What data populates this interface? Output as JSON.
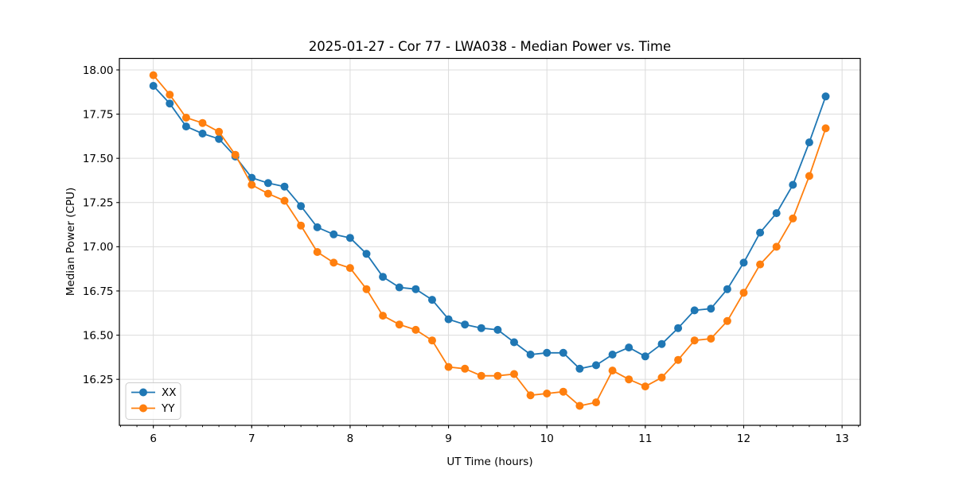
{
  "chart_data": {
    "type": "line",
    "title": "2025-01-27 - Cor 77 - LWA038 - Median Power vs. Time",
    "xlabel": "UT Time (hours)",
    "ylabel": "Median Power (CPU)",
    "xlim": [
      5.655,
      13.185
    ],
    "ylim": [
      15.99,
      18.065
    ],
    "grid": true,
    "legend_position": "lower left",
    "x_minor_step": 0.1666667,
    "x_ticks": [
      {
        "v": 6,
        "label": "6"
      },
      {
        "v": 7,
        "label": "7"
      },
      {
        "v": 8,
        "label": "8"
      },
      {
        "v": 9,
        "label": "9"
      },
      {
        "v": 10,
        "label": "10"
      },
      {
        "v": 11,
        "label": "11"
      },
      {
        "v": 12,
        "label": "12"
      },
      {
        "v": 13,
        "label": "13"
      }
    ],
    "y_ticks": [
      {
        "v": 16.25,
        "label": "16.25"
      },
      {
        "v": 16.5,
        "label": "16.50"
      },
      {
        "v": 16.75,
        "label": "16.75"
      },
      {
        "v": 17.0,
        "label": "17.00"
      },
      {
        "v": 17.25,
        "label": "17.25"
      },
      {
        "v": 17.5,
        "label": "17.50"
      },
      {
        "v": 17.75,
        "label": "17.75"
      },
      {
        "v": 18.0,
        "label": "18.00"
      }
    ],
    "x": [
      6.0,
      6.1667,
      6.3333,
      6.5,
      6.6667,
      6.8333,
      7.0,
      7.1667,
      7.3333,
      7.5,
      7.6667,
      7.8333,
      8.0,
      8.1667,
      8.3333,
      8.5,
      8.6667,
      8.8333,
      9.0,
      9.1667,
      9.3333,
      9.5,
      9.6667,
      9.8333,
      10.0,
      10.1667,
      10.3333,
      10.5,
      10.6667,
      10.8333,
      11.0,
      11.1667,
      11.3333,
      11.5,
      11.6667,
      11.8333,
      12.0,
      12.1667,
      12.3333,
      12.5,
      12.6667,
      12.8333
    ],
    "series": [
      {
        "name": "XX",
        "color": "#1f77b4",
        "values": [
          17.91,
          17.81,
          17.68,
          17.64,
          17.61,
          17.51,
          17.39,
          17.36,
          17.34,
          17.23,
          17.11,
          17.07,
          17.05,
          16.96,
          16.83,
          16.77,
          16.76,
          16.7,
          16.59,
          16.56,
          16.54,
          16.53,
          16.46,
          16.39,
          16.4,
          16.4,
          16.31,
          16.33,
          16.39,
          16.43,
          16.38,
          16.45,
          16.54,
          16.64,
          16.65,
          16.76,
          16.91,
          17.08,
          17.19,
          17.35,
          17.59,
          17.85
        ]
      },
      {
        "name": "YY",
        "color": "#ff7f0e",
        "values": [
          17.97,
          17.86,
          17.73,
          17.7,
          17.65,
          17.52,
          17.35,
          17.3,
          17.26,
          17.12,
          16.97,
          16.91,
          16.88,
          16.76,
          16.61,
          16.56,
          16.53,
          16.47,
          16.32,
          16.31,
          16.27,
          16.27,
          16.28,
          16.16,
          16.17,
          16.18,
          16.1,
          16.12,
          16.3,
          16.25,
          16.21,
          16.26,
          16.36,
          16.47,
          16.48,
          16.58,
          16.74,
          16.9,
          17.0,
          17.16,
          17.4,
          17.67
        ]
      }
    ],
    "style": {
      "grid_color": "#dcdcdc",
      "spine_color": "#000000",
      "marker_radius": 5,
      "line_width": 1.8
    }
  }
}
